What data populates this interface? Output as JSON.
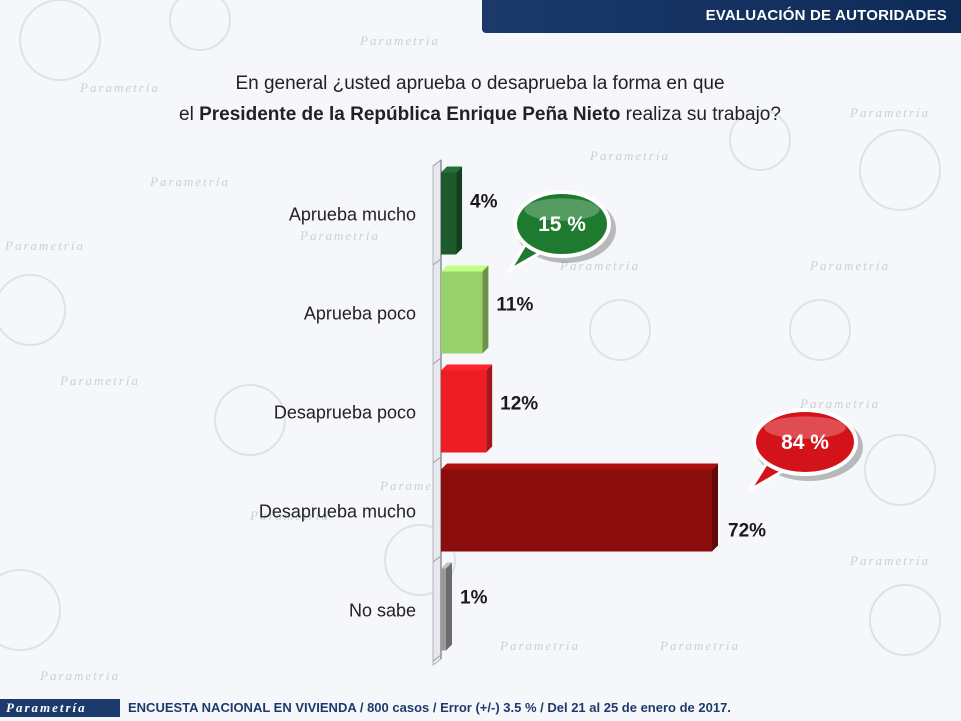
{
  "header": {
    "title": "EVALUACIÓN DE AUTORIDADES"
  },
  "question": {
    "line1": "En general ¿usted aprueba o desaprueba la forma en que",
    "line2_prefix": "el ",
    "line2_bold": "Presidente de la República Enrique Peña Nieto",
    "line2_suffix": " realiza su trabajo?"
  },
  "chart_data": {
    "type": "bar",
    "orientation": "horizontal",
    "categories": [
      "Aprueba mucho",
      "Aprueba poco",
      "Desaprueba poco",
      "Desaprueba mucho",
      "No sabe"
    ],
    "values": [
      4,
      11,
      12,
      72,
      1
    ],
    "value_labels": [
      "4%",
      "11%",
      "12%",
      "72%",
      "1%"
    ],
    "colors": [
      "#1d5a2c",
      "#9ad06a",
      "#ee1c24",
      "#8b0d0d",
      "#9a9a9a"
    ],
    "xlim": [
      0,
      72
    ],
    "grid": false,
    "annotations": [
      {
        "text": "15 %",
        "color": "#1e7a2e",
        "group": "Aprueba"
      },
      {
        "text": "84 %",
        "color": "#d41219",
        "group": "Desaprueba"
      }
    ]
  },
  "footer": {
    "logo": "Parametría",
    "text": "ENCUESTA NACIONAL EN VIVIENDA / 800 casos / Error (+/-) 3.5 % / Del 21 al 25 de enero de 2017."
  },
  "background": {
    "watermark": "Parametría"
  }
}
